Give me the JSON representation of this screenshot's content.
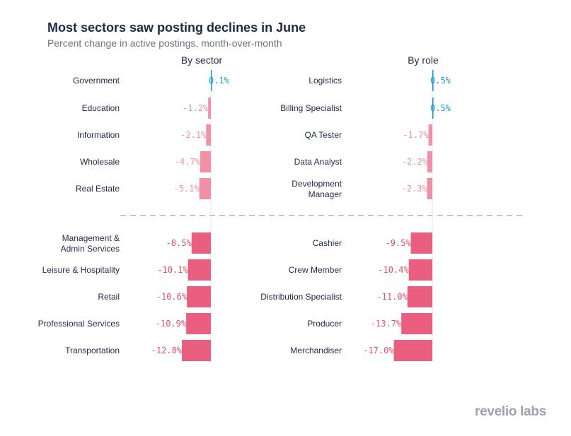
{
  "header": {
    "title": "Most sectors saw posting declines in June",
    "subtitle": "Percent change in active postings, month-over-month"
  },
  "brand": {
    "name": "revelio labs"
  },
  "colors": {
    "positive": "#1a9ad6",
    "negative_light": "#f08fa5",
    "negative_dark": "#ea5f7f",
    "label_negative": "#e3506f",
    "label_negative_light": "#f08fa5",
    "divider": "#b0b0b0",
    "axis": "#e5e7eb",
    "text": "#1f2a44"
  },
  "chart_data": [
    {
      "type": "bar",
      "orientation": "horizontal",
      "title": "By sector",
      "unit": "%",
      "top_group": {
        "categories": [
          "Government",
          "Education",
          "Information",
          "Wholesale",
          "Real Estate"
        ],
        "values": [
          0.1,
          -1.2,
          -2.1,
          -4.7,
          -5.1
        ],
        "labels": [
          "0.1%",
          "-1.2%",
          "-2.1%",
          "-4.7%",
          "-5.1%"
        ]
      },
      "bottom_group": {
        "categories": [
          "Management & Admin Services",
          "Leisure & Hospitality",
          "Retail",
          "Professional Services",
          "Transportation"
        ],
        "values": [
          -8.5,
          -10.1,
          -10.6,
          -10.9,
          -12.8
        ],
        "labels": [
          "-8.5%",
          "-10.1%",
          "-10.6%",
          "-10.9%",
          "-12.8%"
        ]
      }
    },
    {
      "type": "bar",
      "orientation": "horizontal",
      "title": "By role",
      "unit": "%",
      "top_group": {
        "categories": [
          "Logistics",
          "Billing Specialist",
          "QA Tester",
          "Data Analyst",
          "Development Manager"
        ],
        "values": [
          0.5,
          0.5,
          -1.7,
          -2.2,
          -2.3
        ],
        "labels": [
          "0.5%",
          "0.5%",
          "-1.7%",
          "-2.2%",
          "-2.3%"
        ]
      },
      "bottom_group": {
        "categories": [
          "Cashier",
          "Crew Member",
          "Distribution Specialist",
          "Producer",
          "Merchandiser"
        ],
        "values": [
          -9.5,
          -10.4,
          -11.0,
          -13.7,
          -17.0
        ],
        "labels": [
          "-9.5%",
          "-10.4%",
          "-11.0%",
          "-13.7%",
          "-17.0%"
        ]
      }
    }
  ]
}
